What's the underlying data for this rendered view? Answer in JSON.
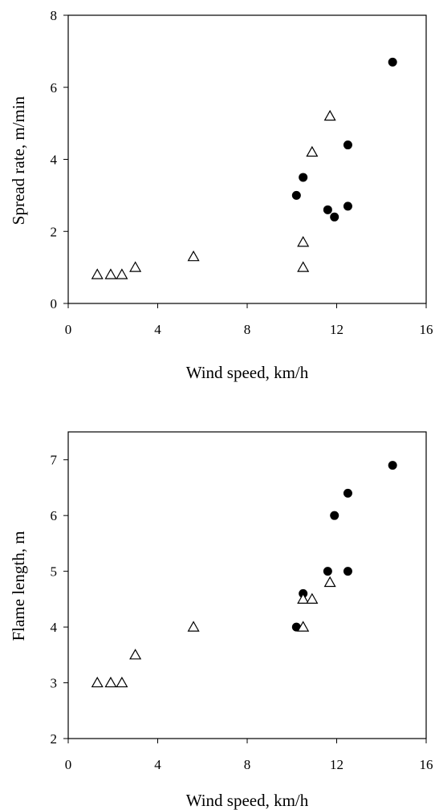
{
  "chart_data": [
    {
      "type": "scatter",
      "xlabel": "Wind speed, km/h",
      "ylabel": "Spread rate, m/min",
      "xlim": [
        0,
        16
      ],
      "ylim": [
        0,
        8
      ],
      "xticks": [
        "0",
        "4",
        "8",
        "12",
        "16"
      ],
      "yticks": [
        "0",
        "2",
        "4",
        "6",
        "8"
      ],
      "grid": false,
      "series": [
        {
          "marker": "filled-circle",
          "points": [
            [
              10.2,
              3.0
            ],
            [
              10.5,
              3.5
            ],
            [
              11.6,
              2.6
            ],
            [
              11.9,
              2.4
            ],
            [
              12.5,
              4.4
            ],
            [
              12.5,
              2.7
            ],
            [
              14.5,
              6.7
            ]
          ]
        },
        {
          "marker": "open-triangle",
          "points": [
            [
              1.3,
              0.8
            ],
            [
              1.9,
              0.8
            ],
            [
              2.4,
              0.8
            ],
            [
              3.0,
              1.0
            ],
            [
              5.6,
              1.3
            ],
            [
              10.5,
              1.0
            ],
            [
              10.5,
              1.7
            ],
            [
              10.9,
              4.2
            ],
            [
              11.7,
              5.2
            ]
          ]
        }
      ]
    },
    {
      "type": "scatter",
      "xlabel": "Wind speed, km/h",
      "ylabel": "Flame length, m",
      "xlim": [
        0,
        16
      ],
      "ylim": [
        2,
        7.5
      ],
      "xticks": [
        "0",
        "4",
        "8",
        "12",
        "16"
      ],
      "yticks": [
        "2",
        "3",
        "4",
        "5",
        "6",
        "7"
      ],
      "grid": false,
      "series": [
        {
          "marker": "filled-circle",
          "points": [
            [
              10.2,
              4.0
            ],
            [
              10.5,
              4.6
            ],
            [
              11.6,
              5.0
            ],
            [
              11.9,
              6.0
            ],
            [
              12.5,
              5.0
            ],
            [
              12.5,
              6.4
            ],
            [
              14.5,
              6.9
            ]
          ]
        },
        {
          "marker": "open-triangle",
          "points": [
            [
              1.3,
              3.0
            ],
            [
              1.9,
              3.0
            ],
            [
              2.4,
              3.0
            ],
            [
              3.0,
              3.5
            ],
            [
              5.6,
              4.0
            ],
            [
              10.5,
              4.0
            ],
            [
              10.5,
              4.5
            ],
            [
              10.9,
              4.5
            ],
            [
              11.7,
              4.8
            ]
          ]
        }
      ]
    }
  ]
}
